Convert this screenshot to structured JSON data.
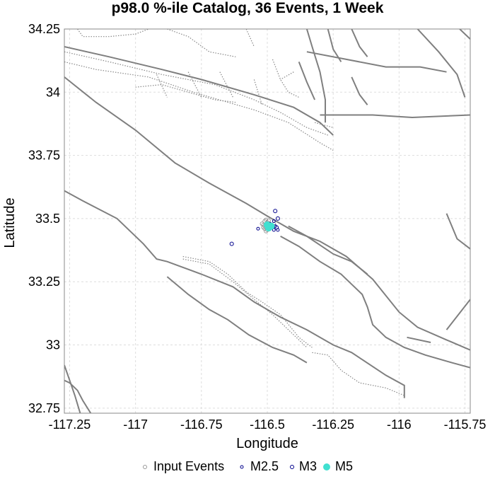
{
  "chart_data": {
    "type": "scatter",
    "title": "p98.0 %-ile Catalog, 36 Events, 1 Week",
    "xlabel": "Longitude",
    "ylabel": "Latitude",
    "xlim": [
      -117.27,
      -115.73
    ],
    "ylim": [
      32.73,
      34.25
    ],
    "x_ticks": [
      -117.25,
      -117,
      -116.75,
      -116.5,
      -116.25,
      -116,
      -115.75
    ],
    "x_tick_labels": [
      "-117.25",
      "-117",
      "-116.75",
      "-116.5",
      "-116.25",
      "-116",
      "-115.75"
    ],
    "y_ticks": [
      32.75,
      33,
      33.25,
      33.5,
      33.75,
      34,
      34.25
    ],
    "y_tick_labels": [
      "32.75",
      "33",
      "33.25",
      "33.5",
      "33.75",
      "34",
      "34.25"
    ],
    "grid": true,
    "legend_position": "bottom",
    "colors": {
      "input": "#999999",
      "m25": "#00008b",
      "m3": "#00008b",
      "m5": "#40e0d0",
      "fault": "#7f7f7f",
      "grid": "#dddddd"
    },
    "legend": [
      {
        "key": "input",
        "label": "Input Events"
      },
      {
        "key": "m25",
        "label": "M2.5"
      },
      {
        "key": "m3",
        "label": "M3"
      },
      {
        "key": "m5",
        "label": "M5"
      }
    ],
    "series": [
      {
        "name": "Input Events",
        "key": "input",
        "points": [
          [
            -116.505,
            33.495
          ],
          [
            -116.51,
            33.49
          ],
          [
            -116.5,
            33.485
          ],
          [
            -116.495,
            33.48
          ],
          [
            -116.515,
            33.475
          ],
          [
            -116.49,
            33.47
          ],
          [
            -116.505,
            33.465
          ],
          [
            -116.51,
            33.46
          ],
          [
            -116.485,
            33.475
          ],
          [
            -116.5,
            33.455
          ],
          [
            -116.48,
            33.47
          ],
          [
            -116.52,
            33.48
          ],
          [
            -116.495,
            33.492
          ],
          [
            -116.475,
            33.478
          ],
          [
            -116.5,
            33.47
          ],
          [
            -116.49,
            33.46
          ],
          [
            -116.515,
            33.465
          ],
          [
            -116.505,
            33.45
          ]
        ]
      },
      {
        "name": "M2.5",
        "key": "m25",
        "points": [
          [
            -116.535,
            33.46
          ],
          [
            -116.475,
            33.49
          ],
          [
            -116.485,
            33.475
          ],
          [
            -116.48,
            33.465
          ],
          [
            -116.47,
            33.47
          ],
          [
            -116.46,
            33.455
          ],
          [
            -116.475,
            33.455
          ],
          [
            -116.49,
            33.48
          ]
        ]
      },
      {
        "name": "M3",
        "key": "m3",
        "points": [
          [
            -116.635,
            33.4
          ],
          [
            -116.47,
            33.53
          ],
          [
            -116.46,
            33.5
          ],
          [
            -116.48,
            33.47
          ],
          [
            -116.465,
            33.465
          ]
        ]
      },
      {
        "name": "M5",
        "key": "m5",
        "points": [
          [
            -116.495,
            33.463
          ],
          [
            -116.5,
            33.475
          ],
          [
            -116.485,
            33.47
          ]
        ]
      }
    ],
    "faults_solid": [
      [
        [
          -117.27,
          34.18
        ],
        [
          -117.1,
          34.14
        ],
        [
          -116.9,
          34.09
        ],
        [
          -116.75,
          34.05
        ],
        [
          -116.55,
          33.99
        ],
        [
          -116.4,
          33.94
        ],
        [
          -116.3,
          33.88
        ],
        [
          -116.25,
          33.83
        ]
      ],
      [
        [
          -117.27,
          34.06
        ],
        [
          -117.15,
          33.96
        ],
        [
          -117.0,
          33.85
        ],
        [
          -116.85,
          33.72
        ],
        [
          -116.72,
          33.64
        ],
        [
          -116.58,
          33.56
        ],
        [
          -116.5,
          33.51
        ],
        [
          -116.4,
          33.45
        ],
        [
          -116.3,
          33.41
        ],
        [
          -116.2,
          33.35
        ],
        [
          -116.1,
          33.26
        ],
        [
          -116.0,
          33.13
        ],
        [
          -115.93,
          33.07
        ],
        [
          -115.82,
          33.02
        ],
        [
          -115.73,
          32.98
        ]
      ],
      [
        [
          -117.27,
          33.61
        ],
        [
          -117.2,
          33.57
        ],
        [
          -117.07,
          33.5
        ],
        [
          -116.97,
          33.4
        ],
        [
          -116.92,
          33.34
        ],
        [
          -116.88,
          33.33
        ],
        [
          -116.75,
          33.28
        ],
        [
          -116.63,
          33.23
        ],
        [
          -116.55,
          33.17
        ],
        [
          -116.45,
          33.11
        ],
        [
          -116.35,
          33.06
        ],
        [
          -116.25,
          33.0
        ],
        [
          -116.18,
          32.97
        ],
        [
          -116.05,
          32.88
        ],
        [
          -115.98,
          32.84
        ],
        [
          -115.98,
          32.79
        ]
      ],
      [
        [
          -116.88,
          33.27
        ],
        [
          -116.8,
          33.2
        ],
        [
          -116.72,
          33.14
        ],
        [
          -116.65,
          33.1
        ],
        [
          -116.57,
          33.04
        ],
        [
          -116.48,
          32.99
        ],
        [
          -116.4,
          32.96
        ],
        [
          -116.35,
          32.93
        ]
      ],
      [
        [
          -116.45,
          33.43
        ],
        [
          -116.38,
          33.39
        ],
        [
          -116.3,
          33.33
        ],
        [
          -116.22,
          33.28
        ],
        [
          -116.18,
          33.24
        ],
        [
          -116.14,
          33.2
        ],
        [
          -116.12,
          33.15
        ],
        [
          -116.1,
          33.08
        ],
        [
          -116.05,
          33.03
        ],
        [
          -115.98,
          32.99
        ],
        [
          -115.9,
          32.96
        ],
        [
          -115.8,
          32.93
        ],
        [
          -115.73,
          32.91
        ]
      ],
      [
        [
          -116.42,
          33.47
        ],
        [
          -116.35,
          33.43
        ],
        [
          -116.25,
          33.36
        ],
        [
          -116.18,
          33.33
        ],
        [
          -116.12,
          33.28
        ]
      ],
      [
        [
          -115.82,
          33.06
        ],
        [
          -115.73,
          33.18
        ]
      ],
      [
        [
          -115.97,
          33.03
        ],
        [
          -115.88,
          33.01
        ]
      ],
      [
        [
          -116.35,
          34.16
        ],
        [
          -116.2,
          34.13
        ],
        [
          -116.05,
          34.1
        ],
        [
          -115.92,
          34.1
        ],
        [
          -115.82,
          34.08
        ]
      ],
      [
        [
          -116.3,
          33.91
        ],
        [
          -116.1,
          33.91
        ],
        [
          -115.95,
          33.9
        ],
        [
          -115.73,
          33.91
        ]
      ],
      [
        [
          -116.35,
          34.25
        ],
        [
          -116.33,
          34.18
        ],
        [
          -116.3,
          34.08
        ],
        [
          -116.28,
          33.97
        ],
        [
          -116.28,
          33.88
        ]
      ],
      [
        [
          -116.27,
          34.25
        ],
        [
          -116.25,
          34.17
        ],
        [
          -116.22,
          34.12
        ]
      ],
      [
        [
          -116.18,
          34.25
        ],
        [
          -116.15,
          34.18
        ],
        [
          -116.12,
          34.14
        ]
      ],
      [
        [
          -115.93,
          34.25
        ],
        [
          -115.85,
          34.16
        ],
        [
          -115.78,
          34.07
        ],
        [
          -115.75,
          33.98
        ]
      ],
      [
        [
          -115.77,
          34.25
        ],
        [
          -115.73,
          34.21
        ]
      ],
      [
        [
          -116.38,
          34.12
        ],
        [
          -116.35,
          34.04
        ],
        [
          -116.32,
          33.97
        ]
      ],
      [
        [
          -116.18,
          34.06
        ],
        [
          -116.15,
          33.99
        ],
        [
          -116.12,
          33.95
        ]
      ],
      [
        [
          -115.82,
          33.52
        ],
        [
          -115.78,
          33.42
        ],
        [
          -115.73,
          33.38
        ]
      ],
      [
        [
          -117.27,
          32.92
        ],
        [
          -117.25,
          32.86
        ],
        [
          -117.23,
          32.8
        ],
        [
          -117.21,
          32.73
        ]
      ],
      [
        [
          -117.27,
          32.86
        ],
        [
          -117.25,
          32.85
        ],
        [
          -117.22,
          32.82
        ],
        [
          -117.2,
          32.78
        ],
        [
          -117.17,
          32.73
        ]
      ]
    ],
    "faults_dotted": [
      [
        [
          -117.27,
          34.16
        ],
        [
          -117.1,
          34.12
        ],
        [
          -116.9,
          34.07
        ],
        [
          -116.7,
          34.03
        ],
        [
          -116.55,
          33.97
        ],
        [
          -116.45,
          33.92
        ],
        [
          -116.35,
          33.86
        ],
        [
          -116.27,
          33.83
        ]
      ],
      [
        [
          -117.27,
          34.12
        ],
        [
          -117.15,
          34.09
        ],
        [
          -116.95,
          34.06
        ],
        [
          -116.78,
          34.0
        ],
        [
          -116.65,
          33.96
        ],
        [
          -116.55,
          33.93
        ],
        [
          -116.42,
          33.88
        ],
        [
          -116.3,
          33.8
        ],
        [
          -116.25,
          33.77
        ]
      ],
      [
        [
          -117.0,
          34.02
        ],
        [
          -116.9,
          34.03
        ],
        [
          -116.8,
          34.0
        ],
        [
          -116.7,
          33.97
        ],
        [
          -116.62,
          33.96
        ]
      ],
      [
        [
          -116.92,
          34.07
        ],
        [
          -116.88,
          33.98
        ]
      ],
      [
        [
          -116.8,
          34.08
        ],
        [
          -116.75,
          33.98
        ]
      ],
      [
        [
          -116.68,
          34.08
        ],
        [
          -116.63,
          33.98
        ]
      ],
      [
        [
          -116.55,
          34.05
        ],
        [
          -116.52,
          33.95
        ]
      ],
      [
        [
          -117.22,
          34.25
        ],
        [
          -117.2,
          34.22
        ],
        [
          -117.1,
          34.22
        ],
        [
          -117.0,
          34.23
        ],
        [
          -116.95,
          34.25
        ]
      ],
      [
        [
          -116.88,
          34.25
        ],
        [
          -116.8,
          34.22
        ],
        [
          -116.72,
          34.16
        ],
        [
          -116.62,
          34.14
        ]
      ],
      [
        [
          -116.58,
          34.25
        ],
        [
          -116.55,
          34.18
        ]
      ],
      [
        [
          -116.48,
          34.13
        ],
        [
          -116.45,
          34.05
        ],
        [
          -116.42,
          34.0
        ],
        [
          -116.38,
          33.98
        ]
      ],
      [
        [
          -116.4,
          34.08
        ],
        [
          -116.45,
          34.05
        ]
      ],
      [
        [
          -116.32,
          33.88
        ],
        [
          -116.25,
          33.86
        ]
      ],
      [
        [
          -116.82,
          33.35
        ],
        [
          -116.72,
          33.33
        ],
        [
          -116.65,
          33.28
        ],
        [
          -116.58,
          33.21
        ],
        [
          -116.52,
          33.17
        ],
        [
          -116.45,
          33.12
        ],
        [
          -116.38,
          33.03
        ],
        [
          -116.33,
          32.99
        ]
      ],
      [
        [
          -116.82,
          33.34
        ],
        [
          -116.72,
          33.32
        ],
        [
          -116.63,
          33.25
        ],
        [
          -116.55,
          33.18
        ],
        [
          -116.48,
          33.12
        ],
        [
          -116.42,
          33.06
        ],
        [
          -116.35,
          32.99
        ]
      ],
      [
        [
          -116.33,
          32.97
        ],
        [
          -116.27,
          32.96
        ],
        [
          -116.22,
          32.9
        ],
        [
          -116.15,
          32.85
        ],
        [
          -116.05,
          32.83
        ],
        [
          -115.98,
          32.8
        ]
      ]
    ]
  }
}
